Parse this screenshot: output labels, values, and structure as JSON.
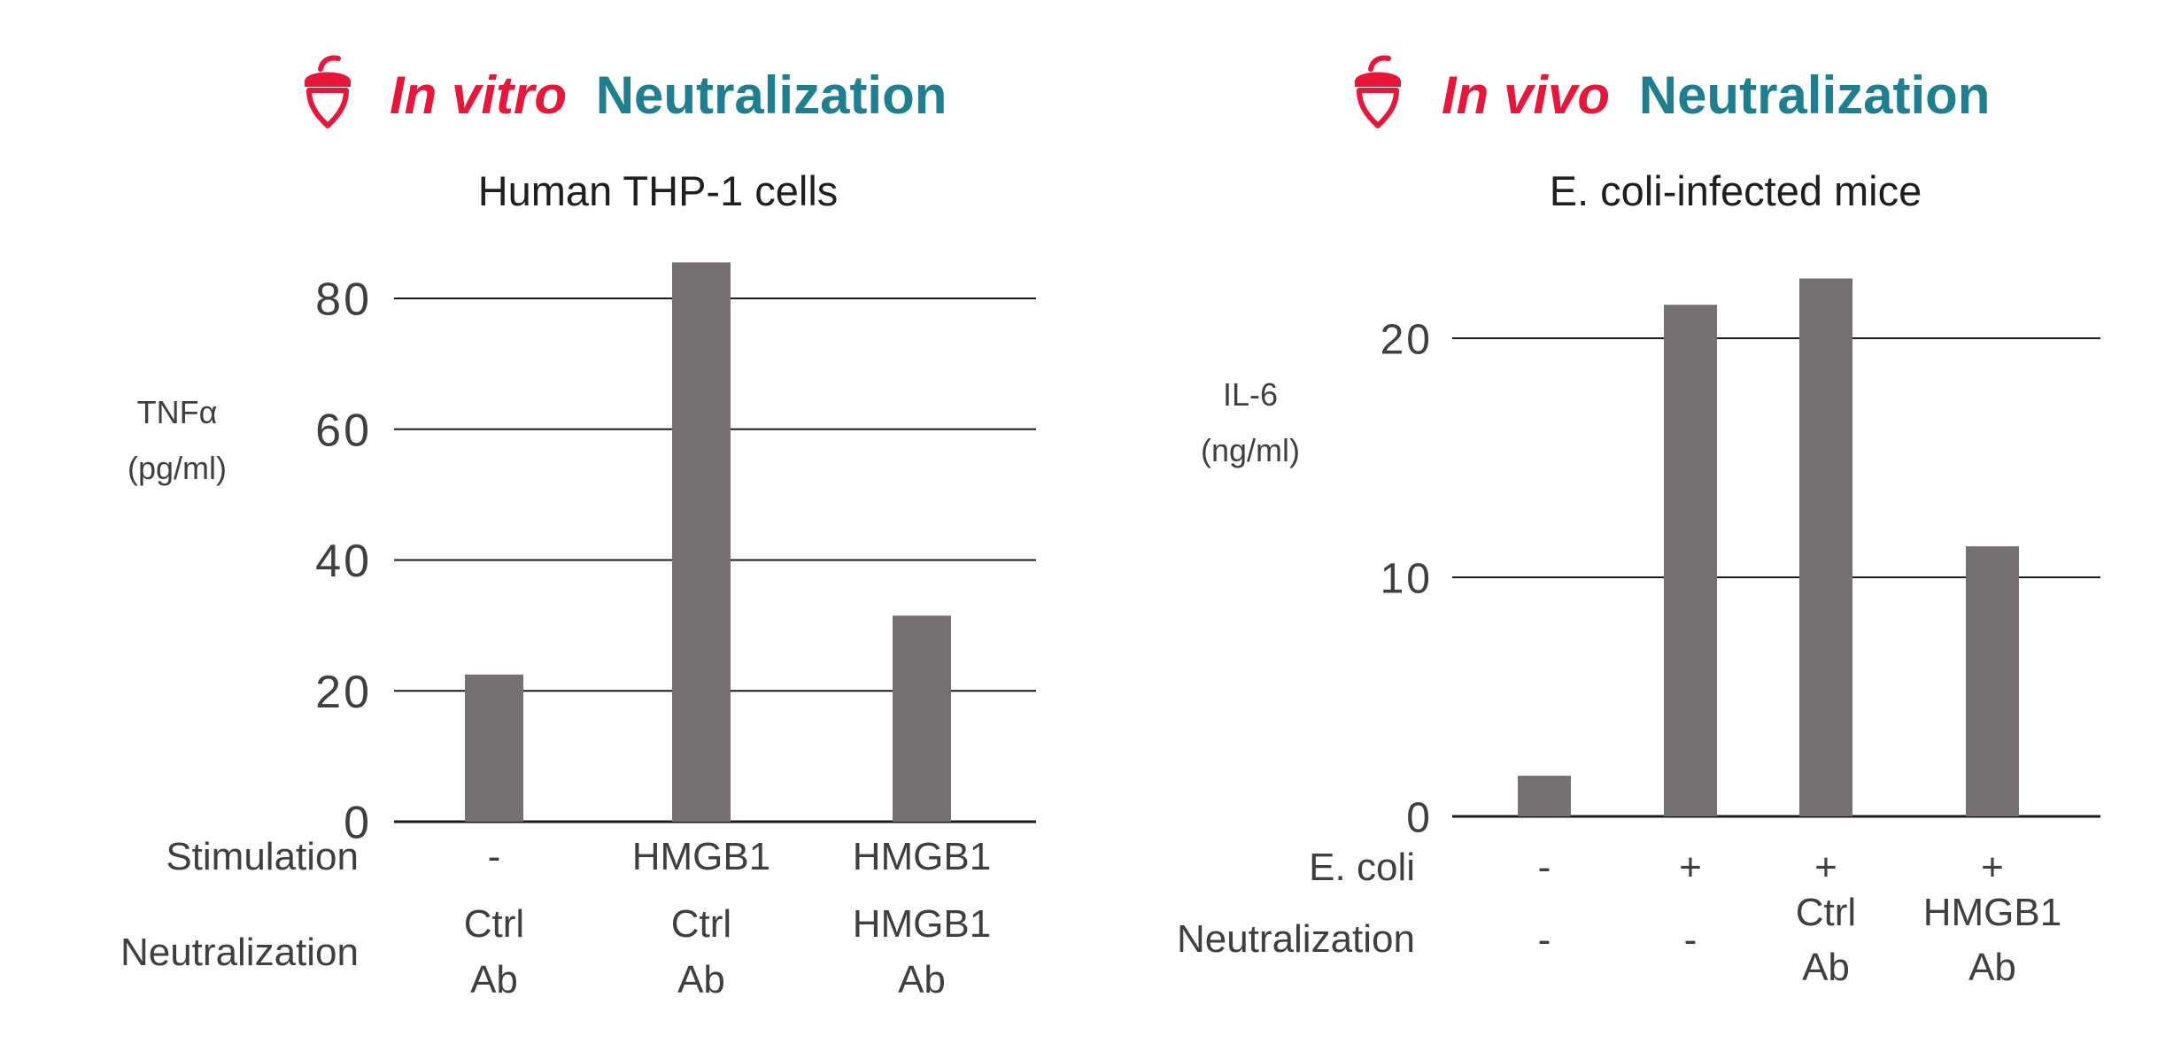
{
  "colors": {
    "accent_red": "#e8173a",
    "accent_teal": "#1e7f91",
    "bar": "#767070",
    "axis_line": "#1a1a1a",
    "text": "#3f3f3f",
    "subtitle": "#1f1f1f"
  },
  "icon": "acorn-icon",
  "chart_data": [
    {
      "type": "bar",
      "heading_italic": "In vitro",
      "heading_rest": "Neutralization",
      "title": "Human THP-1 cells",
      "ylabel": [
        "TNFα",
        "(pg/ml)"
      ],
      "ylim": [
        0,
        80
      ],
      "yticks": [
        0,
        20,
        40,
        60,
        80
      ],
      "grid": true,
      "values": [
        22.5,
        85.5,
        31.5
      ],
      "row_labels": [
        "Stimulation",
        "Neutralization"
      ],
      "categories": [
        {
          "stimulation": [
            "-"
          ],
          "neutralization": [
            "Ctrl",
            "Ab"
          ]
        },
        {
          "stimulation": [
            "HMGB1"
          ],
          "neutralization": [
            "Ctrl",
            "Ab"
          ]
        },
        {
          "stimulation": [
            "HMGB1"
          ],
          "neutralization": [
            "HMGB1",
            "Ab"
          ]
        }
      ]
    },
    {
      "type": "bar",
      "heading_italic": "In vivo",
      "heading_rest": "Neutralization",
      "title": "E. coli-infected mice",
      "ylabel": [
        "IL-6",
        "(ng/ml)"
      ],
      "ylim": [
        0,
        20
      ],
      "yticks": [
        0,
        10,
        20
      ],
      "grid": true,
      "values": [
        1.7,
        21.4,
        22.5,
        11.3
      ],
      "row_labels": [
        "E. coli",
        "Neutralization"
      ],
      "categories": [
        {
          "stimulation": [
            "-"
          ],
          "neutralization": [
            "-"
          ]
        },
        {
          "stimulation": [
            "+"
          ],
          "neutralization": [
            "-"
          ]
        },
        {
          "stimulation": [
            "+"
          ],
          "neutralization": [
            "Ctrl",
            "Ab"
          ]
        },
        {
          "stimulation": [
            "+"
          ],
          "neutralization": [
            "HMGB1",
            "Ab"
          ]
        }
      ]
    }
  ]
}
